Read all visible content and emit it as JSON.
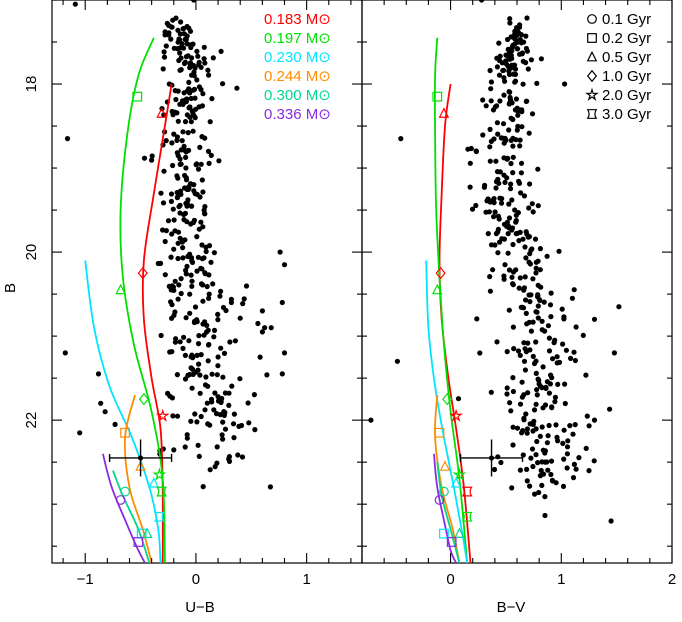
{
  "chart_data": [
    {
      "type": "scatter",
      "panel": "left",
      "xlabel": "U−B",
      "ylabel": "B",
      "xlim": [
        -1.3,
        1.5
      ],
      "ylim": [
        23.7,
        17.0
      ],
      "y_inverted": true,
      "xticks_major": [
        -1,
        0,
        1
      ],
      "yticks_major": [
        18,
        20,
        22
      ],
      "grid": false,
      "legend": {
        "placement": "top-right",
        "entries": [
          {
            "text": "0.183 M⊙",
            "color": "#ff0000"
          },
          {
            "text": "0.197 M⊙",
            "color": "#00e000"
          },
          {
            "text": "0.230 M⊙",
            "color": "#00e5ff"
          },
          {
            "text": "0.244 M⊙",
            "color": "#ff8c00"
          },
          {
            "text": "0.300 M⊙",
            "color": "#00d88a"
          },
          {
            "text": "0.336 M⊙",
            "color": "#8a2be2"
          }
        ]
      },
      "tracks": [
        {
          "color": "#ff0000",
          "points": [
            [
              -0.22,
              18.0
            ],
            [
              -0.28,
              18.5
            ],
            [
              -0.38,
              19.3
            ],
            [
              -0.47,
              20.1
            ],
            [
              -0.47,
              20.8
            ],
            [
              -0.4,
              21.5
            ],
            [
              -0.32,
              22.1
            ],
            [
              -0.3,
              22.8
            ],
            [
              -0.3,
              23.7
            ]
          ]
        },
        {
          "color": "#00e000",
          "points": [
            [
              -0.38,
              17.45
            ],
            [
              -0.52,
              17.9
            ],
            [
              -0.62,
              18.6
            ],
            [
              -0.68,
              19.5
            ],
            [
              -0.66,
              20.3
            ],
            [
              -0.56,
              21.1
            ],
            [
              -0.4,
              21.9
            ],
            [
              -0.3,
              22.7
            ],
            [
              -0.28,
              23.7
            ]
          ]
        },
        {
          "color": "#00e5ff",
          "points": [
            [
              -1.0,
              20.1
            ],
            [
              -0.92,
              20.9
            ],
            [
              -0.78,
              21.6
            ],
            [
              -0.58,
              22.2
            ],
            [
              -0.42,
              22.8
            ],
            [
              -0.34,
              23.3
            ],
            [
              -0.32,
              23.7
            ]
          ]
        },
        {
          "color": "#ff8c00",
          "points": [
            [
              -0.55,
              21.7
            ],
            [
              -0.64,
              22.2
            ],
            [
              -0.6,
              22.8
            ],
            [
              -0.48,
              23.3
            ],
            [
              -0.4,
              23.7
            ]
          ]
        },
        {
          "color": "#00d88a",
          "points": [
            [
              -0.75,
              22.6
            ],
            [
              -0.66,
              22.9
            ],
            [
              -0.52,
              23.3
            ],
            [
              -0.42,
              23.7
            ]
          ]
        },
        {
          "color": "#8a2be2",
          "points": [
            [
              -0.84,
              22.4
            ],
            [
              -0.76,
              22.8
            ],
            [
              -0.62,
              23.25
            ],
            [
              -0.52,
              23.55
            ],
            [
              -0.46,
              23.7
            ]
          ]
        }
      ],
      "age_markers": [
        {
          "shape": "square",
          "color": "#00e000",
          "x": -0.53,
          "y": 18.15
        },
        {
          "shape": "triangle",
          "color": "#ff0000",
          "x": -0.31,
          "y": 18.35
        },
        {
          "shape": "triangle",
          "color": "#00e000",
          "x": -0.68,
          "y": 20.45
        },
        {
          "shape": "diamond",
          "color": "#ff0000",
          "x": -0.48,
          "y": 20.25
        },
        {
          "shape": "diamond",
          "color": "#00e000",
          "x": -0.47,
          "y": 21.75
        },
        {
          "shape": "star",
          "color": "#ff0000",
          "x": -0.3,
          "y": 21.95
        },
        {
          "shape": "square",
          "color": "#ff8c00",
          "x": -0.64,
          "y": 22.15
        },
        {
          "shape": "triangle",
          "color": "#ff8c00",
          "x": -0.5,
          "y": 22.55
        },
        {
          "shape": "star",
          "color": "#00e000",
          "x": -0.33,
          "y": 22.65
        },
        {
          "shape": "circle",
          "color": "#00d88a",
          "x": -0.64,
          "y": 22.85
        },
        {
          "shape": "triangle",
          "color": "#00e5ff",
          "x": -0.38,
          "y": 22.75
        },
        {
          "shape": "hourglass",
          "color": "#00e000",
          "x": -0.31,
          "y": 22.85
        },
        {
          "shape": "circle",
          "color": "#8a2be2",
          "x": -0.68,
          "y": 22.95
        },
        {
          "shape": "hourglass",
          "color": "#00e5ff",
          "x": -0.33,
          "y": 23.15
        },
        {
          "shape": "square",
          "color": "#00e5ff",
          "x": -0.49,
          "y": 23.35
        },
        {
          "shape": "triangle",
          "color": "#00d88a",
          "x": -0.44,
          "y": 23.35
        },
        {
          "shape": "square",
          "color": "#8a2be2",
          "x": -0.52,
          "y": 23.45
        }
      ],
      "errorbar": {
        "x": -0.5,
        "y": 22.45,
        "xerr": 0.28,
        "yerr": 0.22
      },
      "points": {
        "outliers": [
          [
            -1.09,
            17.05
          ],
          [
            -0.02,
            17.0
          ],
          [
            -1.16,
            18.65
          ],
          [
            0.37,
            18.05
          ],
          [
            -1.18,
            21.2
          ],
          [
            0.56,
            20.85
          ],
          [
            0.6,
            20.7
          ],
          [
            0.62,
            20.9
          ],
          [
            0.76,
            20.0
          ],
          [
            0.8,
            20.15
          ],
          [
            0.78,
            20.6
          ],
          [
            0.8,
            21.2
          ],
          [
            0.78,
            21.45
          ],
          [
            0.6,
            20.95
          ],
          [
            0.68,
            20.9
          ],
          [
            0.58,
            21.25
          ],
          [
            -0.86,
            21.8
          ],
          [
            -0.73,
            22.05
          ],
          [
            -0.82,
            21.9
          ],
          [
            -0.88,
            21.45
          ],
          [
            -1.05,
            22.15
          ],
          [
            0.32,
            20.6
          ]
        ],
        "band": [
          [
            -0.15,
            17.45,
            0.12,
            0.05
          ],
          [
            -0.05,
            17.75,
            0.11,
            0.06
          ],
          [
            -0.06,
            18.2,
            0.13,
            0.07
          ],
          [
            -0.1,
            18.7,
            0.15,
            0.08
          ],
          [
            -0.12,
            19.2,
            0.14,
            0.09
          ],
          [
            -0.12,
            19.7,
            0.15,
            0.09
          ],
          [
            -0.05,
            20.2,
            0.17,
            0.1
          ],
          [
            0.05,
            20.7,
            0.19,
            0.11
          ],
          [
            0.12,
            21.2,
            0.2,
            0.12
          ],
          [
            0.18,
            21.7,
            0.23,
            0.13
          ],
          [
            0.12,
            22.2,
            0.25,
            0.14
          ]
        ]
      }
    },
    {
      "type": "scatter",
      "panel": "right",
      "xlabel": "B−V",
      "ylabel": "",
      "xlim": [
        -0.8,
        2.0
      ],
      "ylim": [
        23.7,
        17.0
      ],
      "y_inverted": true,
      "xticks_major": [
        0,
        1,
        2
      ],
      "yticks_major": [
        18,
        20,
        22
      ],
      "grid": false,
      "legend": {
        "placement": "top-right",
        "entries": [
          {
            "text": "0.1 Gyr",
            "shape": "circle"
          },
          {
            "text": "0.2 Gyr",
            "shape": "square"
          },
          {
            "text": "0.5 Gyr",
            "shape": "triangle"
          },
          {
            "text": "1.0 Gyr",
            "shape": "diamond"
          },
          {
            "text": "2.0 Gyr",
            "shape": "star"
          },
          {
            "text": "3.0 Gyr",
            "shape": "hourglass"
          }
        ]
      },
      "tracks": [
        {
          "color": "#ff0000",
          "points": [
            [
              0.0,
              18.0
            ],
            [
              -0.05,
              18.5
            ],
            [
              -0.08,
              19.3
            ],
            [
              -0.1,
              20.1
            ],
            [
              -0.08,
              20.8
            ],
            [
              -0.02,
              21.5
            ],
            [
              0.05,
              22.1
            ],
            [
              0.12,
              22.8
            ],
            [
              0.18,
              23.7
            ]
          ]
        },
        {
          "color": "#00e000",
          "points": [
            [
              -0.12,
              17.45
            ],
            [
              -0.14,
              17.9
            ],
            [
              -0.14,
              18.6
            ],
            [
              -0.13,
              19.5
            ],
            [
              -0.1,
              20.3
            ],
            [
              -0.06,
              21.1
            ],
            [
              0.0,
              21.9
            ],
            [
              0.08,
              22.7
            ],
            [
              0.15,
              23.7
            ]
          ]
        },
        {
          "color": "#00e5ff",
          "points": [
            [
              -0.22,
              20.1
            ],
            [
              -0.2,
              20.9
            ],
            [
              -0.14,
              21.6
            ],
            [
              -0.06,
              22.2
            ],
            [
              0.03,
              22.8
            ],
            [
              0.1,
              23.3
            ],
            [
              0.15,
              23.7
            ]
          ]
        },
        {
          "color": "#ff8c00",
          "points": [
            [
              -0.12,
              21.7
            ],
            [
              -0.14,
              22.2
            ],
            [
              -0.08,
              22.8
            ],
            [
              0.02,
              23.3
            ],
            [
              0.08,
              23.7
            ]
          ]
        },
        {
          "color": "#00d88a",
          "points": [
            [
              -0.12,
              22.5
            ],
            [
              -0.08,
              22.9
            ],
            [
              0.0,
              23.3
            ],
            [
              0.08,
              23.7
            ]
          ]
        },
        {
          "color": "#8a2be2",
          "points": [
            [
              -0.15,
              22.4
            ],
            [
              -0.12,
              22.8
            ],
            [
              -0.05,
              23.25
            ],
            [
              0.0,
              23.55
            ],
            [
              0.05,
              23.7
            ]
          ]
        }
      ],
      "age_markers": [
        {
          "shape": "square",
          "color": "#00e000",
          "x": -0.12,
          "y": 18.15
        },
        {
          "shape": "triangle",
          "color": "#ff0000",
          "x": -0.06,
          "y": 18.35
        },
        {
          "shape": "triangle",
          "color": "#00e000",
          "x": -0.12,
          "y": 20.45
        },
        {
          "shape": "diamond",
          "color": "#ff0000",
          "x": -0.09,
          "y": 20.25
        },
        {
          "shape": "diamond",
          "color": "#00e000",
          "x": -0.03,
          "y": 21.75
        },
        {
          "shape": "star",
          "color": "#ff0000",
          "x": 0.05,
          "y": 21.95
        },
        {
          "shape": "square",
          "color": "#ff8c00",
          "x": -0.1,
          "y": 22.15
        },
        {
          "shape": "triangle",
          "color": "#ff8c00",
          "x": -0.05,
          "y": 22.55
        },
        {
          "shape": "star",
          "color": "#00e000",
          "x": 0.08,
          "y": 22.65
        },
        {
          "shape": "circle",
          "color": "#00d88a",
          "x": -0.06,
          "y": 22.85
        },
        {
          "shape": "triangle",
          "color": "#00e5ff",
          "x": 0.05,
          "y": 22.75
        },
        {
          "shape": "hourglass",
          "color": "#ff0000",
          "x": 0.15,
          "y": 22.85
        },
        {
          "shape": "circle",
          "color": "#8a2be2",
          "x": -0.1,
          "y": 22.95
        },
        {
          "shape": "hourglass",
          "color": "#00e000",
          "x": 0.15,
          "y": 23.15
        },
        {
          "shape": "square",
          "color": "#00e5ff",
          "x": -0.06,
          "y": 23.35
        },
        {
          "shape": "triangle",
          "color": "#00d88a",
          "x": 0.08,
          "y": 23.35
        },
        {
          "shape": "square",
          "color": "#8a2be2",
          "x": 0.01,
          "y": 23.45
        }
      ],
      "errorbar": {
        "x": 0.37,
        "y": 22.45,
        "xerr": 0.28,
        "yerr": 0.22
      },
      "points": {
        "outliers": [
          [
            -0.48,
            21.3
          ],
          [
            -0.45,
            18.65
          ],
          [
            1.52,
            20.65
          ],
          [
            1.48,
            21.2
          ],
          [
            1.3,
            22.0
          ],
          [
            1.25,
            22.6
          ],
          [
            1.45,
            23.2
          ],
          [
            1.3,
            20.8
          ],
          [
            1.1,
            20.55
          ],
          [
            1.03,
            18.0
          ],
          [
            0.82,
            17.7
          ],
          [
            0.28,
            17.0
          ],
          [
            -0.72,
            22.0
          ]
        ],
        "band": [
          [
            0.6,
            17.45,
            0.05,
            0.05
          ],
          [
            0.55,
            17.75,
            0.09,
            0.06
          ],
          [
            0.5,
            18.2,
            0.12,
            0.07
          ],
          [
            0.45,
            18.7,
            0.15,
            0.08
          ],
          [
            0.48,
            19.2,
            0.15,
            0.09
          ],
          [
            0.55,
            19.7,
            0.16,
            0.09
          ],
          [
            0.65,
            20.2,
            0.17,
            0.1
          ],
          [
            0.75,
            20.7,
            0.19,
            0.11
          ],
          [
            0.82,
            21.2,
            0.2,
            0.12
          ],
          [
            0.85,
            21.7,
            0.23,
            0.13
          ],
          [
            0.85,
            22.2,
            0.25,
            0.14
          ],
          [
            0.9,
            22.5,
            0.22,
            0.12
          ]
        ]
      }
    }
  ]
}
